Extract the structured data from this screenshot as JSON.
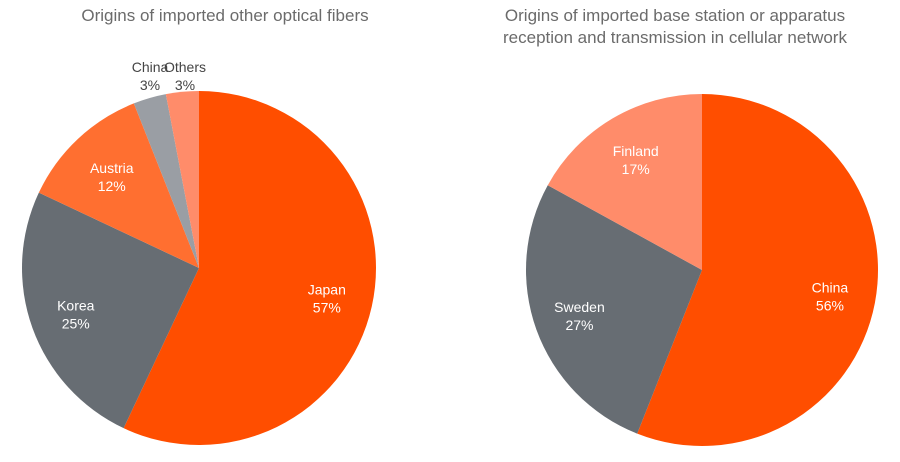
{
  "chart_data": [
    {
      "type": "pie",
      "title": "Origins of imported other optical fibers",
      "slices": [
        {
          "label": "Japan",
          "value": 57,
          "display": "57%",
          "color": "#ff4e00",
          "label_color": "#ffffff"
        },
        {
          "label": "Korea",
          "value": 25,
          "display": "25%",
          "color": "#676d73",
          "label_color": "#ffffff"
        },
        {
          "label": "Austria",
          "value": 12,
          "display": "12%",
          "color": "#ff6f30",
          "label_color": "#ffffff"
        },
        {
          "label": "China",
          "value": 3,
          "display": "3%",
          "color": "#9a9ea4",
          "label_color": "#444444"
        },
        {
          "label": "Others",
          "value": 3,
          "display": "3%",
          "color": "#ff8c6a",
          "label_color": "#444444"
        }
      ],
      "start_angle_deg": 0,
      "direction": "clockwise"
    },
    {
      "type": "pie",
      "title": "Origins of imported base station or apparatus\nreception and transmission in cellular network",
      "slices": [
        {
          "label": "China",
          "value": 56,
          "display": "56%",
          "color": "#ff4e00",
          "label_color": "#ffffff"
        },
        {
          "label": "Sweden",
          "value": 27,
          "display": "27%",
          "color": "#676d73",
          "label_color": "#ffffff"
        },
        {
          "label": "Finland",
          "value": 17,
          "display": "17%",
          "color": "#ff8c6a",
          "label_color": "#ffffff"
        }
      ],
      "start_angle_deg": 0,
      "direction": "clockwise"
    }
  ]
}
